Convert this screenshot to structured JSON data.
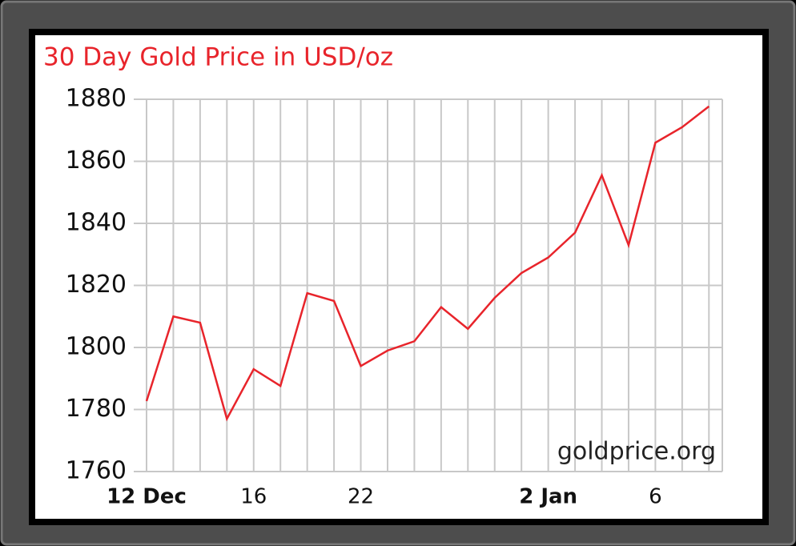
{
  "chart_data": {
    "type": "line",
    "title": "30 Day Gold Price in USD/oz",
    "watermark": "goldprice.org",
    "categories": [
      "12 Dec",
      null,
      null,
      null,
      "16",
      null,
      null,
      null,
      "22",
      null,
      null,
      null,
      null,
      null,
      null,
      "2 Jan",
      null,
      null,
      null,
      "6",
      null,
      null
    ],
    "series": [
      {
        "name": "Gold",
        "color": "#e8242b",
        "values": [
          1782.7,
          1810,
          1808,
          1777,
          1793,
          1787.6,
          1817.5,
          1815,
          1794,
          1799,
          1802,
          1813,
          1806,
          1816,
          1824,
          1829,
          1837,
          1855.5,
          1833,
          1866,
          1871,
          1877.7
        ]
      }
    ],
    "ylim": [
      1760,
      1880
    ],
    "yticks": [
      1760,
      1780,
      1800,
      1820,
      1840,
      1860,
      1880
    ],
    "grid": true
  }
}
